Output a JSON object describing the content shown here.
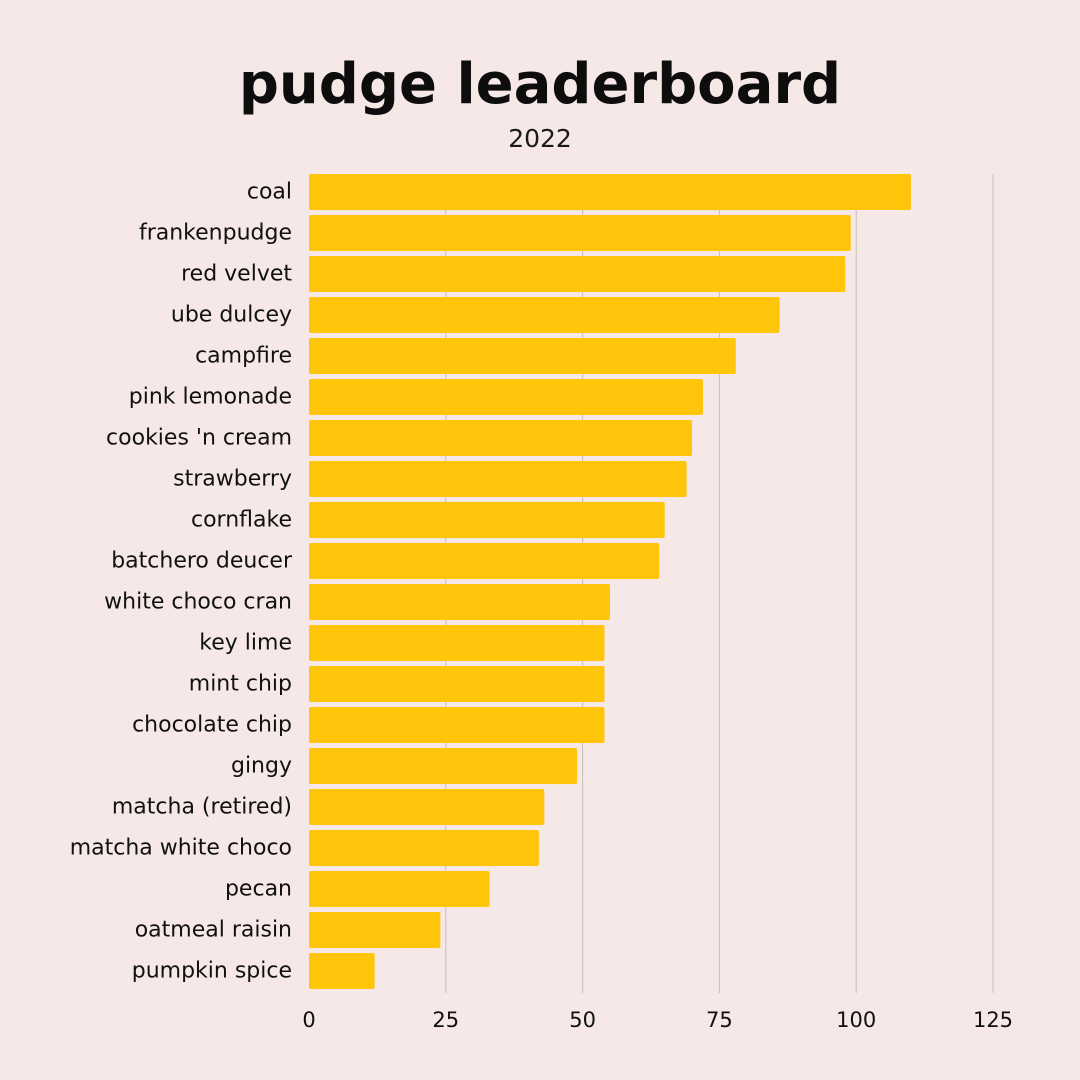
{
  "title": "pudge leaderboard",
  "subtitle": "2022",
  "colors": {
    "background": "#f6e8e6",
    "bar": "#ffc50b",
    "grid": "#c9bebc",
    "text": "#111111"
  },
  "chart_data": {
    "type": "bar",
    "orientation": "horizontal",
    "title": "pudge leaderboard",
    "subtitle": "2022",
    "categories": [
      "coal",
      "frankenpudge",
      "red velvet",
      "ube dulcey",
      "campfire",
      "pink lemonade",
      "cookies 'n cream",
      "strawberry",
      "cornflake",
      "batchero deucer",
      "white choco cran",
      "key lime",
      "mint chip",
      "chocolate chip",
      "gingy",
      "matcha (retired)",
      "matcha white choco",
      "pecan",
      "oatmeal raisin",
      "pumpkin spice"
    ],
    "values": [
      110,
      99,
      98,
      86,
      78,
      72,
      70,
      69,
      65,
      64,
      55,
      54,
      54,
      54,
      49,
      43,
      42,
      33,
      24,
      12
    ],
    "xlim": [
      0,
      125
    ],
    "ticks": [
      0,
      25,
      50,
      75,
      100,
      125
    ],
    "tick_labels": [
      "0",
      "25",
      "50",
      "75",
      "100",
      "125"
    ],
    "grid": true
  }
}
